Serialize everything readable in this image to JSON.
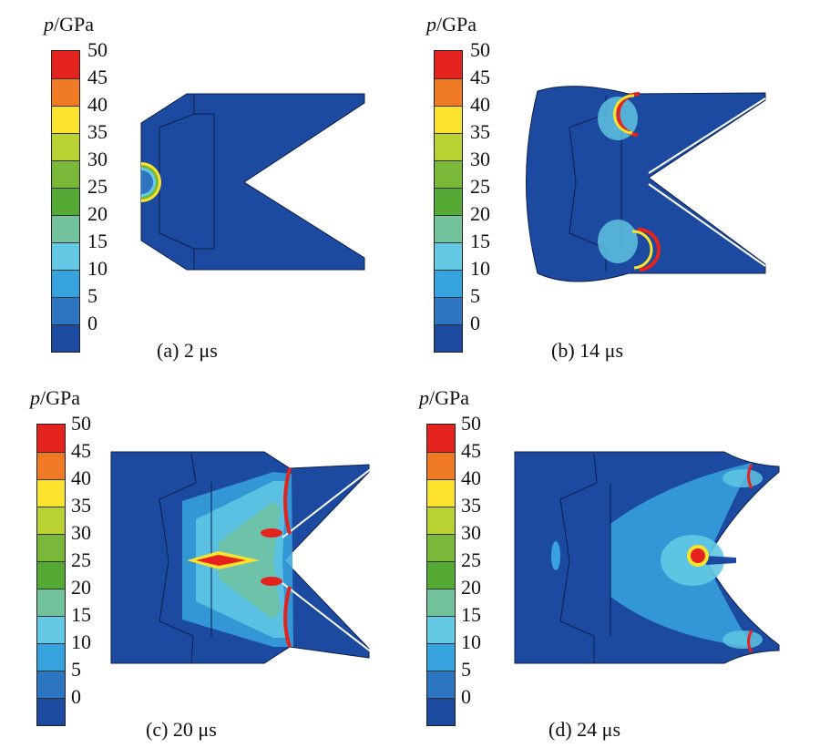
{
  "colorbar": {
    "title_var": "p",
    "title_unit": "/GPa",
    "ticks": [
      "50",
      "45",
      "40",
      "35",
      "30",
      "25",
      "20",
      "15",
      "10",
      "5",
      "0"
    ],
    "colors": [
      "#e4231f",
      "#ef7a23",
      "#fbe22c",
      "#b9d232",
      "#7ab83a",
      "#55a935",
      "#72c29c",
      "#63c9e4",
      "#37a3de",
      "#2c75c0",
      "#1c4aa0"
    ]
  },
  "panels": [
    {
      "caption": "(a) 2 μs"
    },
    {
      "caption": "(b) 14 μs"
    },
    {
      "caption": "(c) 20 μs"
    },
    {
      "caption": "(d) 24 μs"
    }
  ],
  "colors": {
    "background_field": "#1c4aa0",
    "mesh_line": "#0d1f4a"
  }
}
